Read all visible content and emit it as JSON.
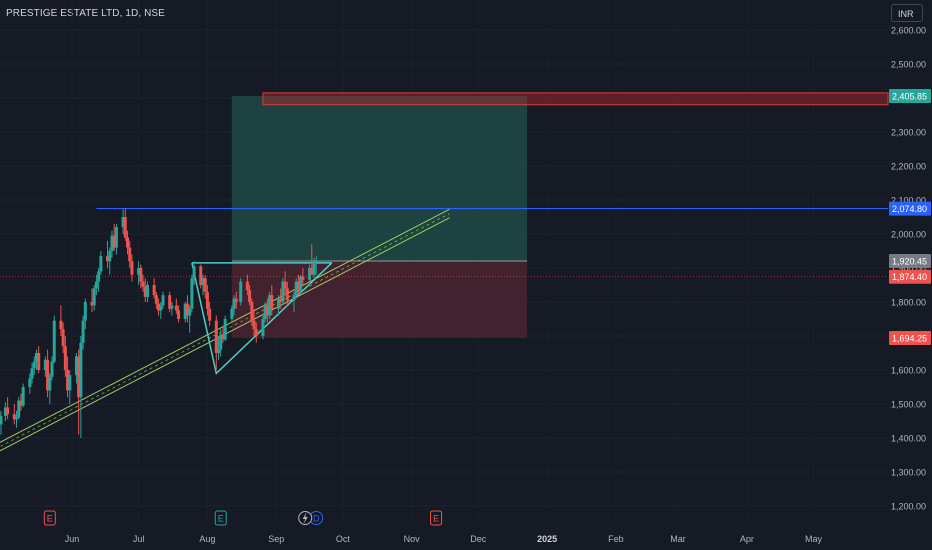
{
  "header": {
    "symbol_title": "PRESTIGE ESTATE LTD, 1D, NSE",
    "currency": "INR"
  },
  "colors": {
    "background": "#161a25",
    "up": "#26a69a",
    "down": "#ef5350",
    "profit_zone": "#1f4a44",
    "loss_zone": "#4a2530",
    "resistance_line": "#2962ff",
    "trendline": "#9ccc65",
    "pattern": "#4dd0c4"
  },
  "chart_data": {
    "type": "candlestick",
    "ylim": [
      1150,
      2650
    ],
    "y_ticks": [
      "1,200.00",
      "1,300.00",
      "1,400.00",
      "1,500.00",
      "1,600.00",
      "1,700.00",
      "1,800.00",
      "1,900.00",
      "2,000.00",
      "2,100.00",
      "2,200.00",
      "2,300.00",
      "2,400.00",
      "2,500.00",
      "2,600.00"
    ],
    "x_ticks": [
      "Jun",
      "Jul",
      "Aug",
      "Sep",
      "Oct",
      "Nov",
      "Dec",
      "2025",
      "Feb",
      "Mar",
      "Apr",
      "May"
    ],
    "price_labels": [
      {
        "text": "2,405.85",
        "value": 2405.85,
        "color": "#26a69a"
      },
      {
        "text": "2,074.80",
        "value": 2074.8,
        "color": "#2962ff"
      },
      {
        "text": "1,920.45",
        "value": 1920.45,
        "color": "#787b86"
      },
      {
        "text": "1,874.40",
        "value": 1874.4,
        "color": "#ef5350"
      },
      {
        "text": "1,694.25",
        "value": 1694.25,
        "color": "#ef5350"
      }
    ],
    "event_markers": [
      {
        "label": "E",
        "date": "2024-05-22"
      },
      {
        "label": "E",
        "date": "2024-08-07"
      },
      {
        "label": "E",
        "date": "2024-11-12"
      },
      {
        "label": "D",
        "date": "2024-09-19"
      }
    ],
    "position_tool": {
      "start": "2024-08-12",
      "end": "2024-12-23",
      "entry": 1920.45,
      "target": 2405.85,
      "stop": 1694.25
    },
    "target_zone": {
      "start": "2024-08-26",
      "end": "2025-05-31",
      "low": 2380,
      "high": 2415
    },
    "resistance": {
      "start": "2024-06-12",
      "end": "2025-05-31",
      "value": 2074.8
    },
    "triangle": [
      {
        "date": "2024-07-25",
        "value": 1915
      },
      {
        "date": "2024-08-05",
        "value": 1590
      },
      {
        "date": "2024-09-26",
        "value": 1915
      }
    ],
    "channel": {
      "start": {
        "date": "2024-02-01",
        "value": 1075
      },
      "end": {
        "date": "2024-11-18",
        "value": 2060
      },
      "offset": 25
    },
    "ohlc": [
      [
        "2024-04-29",
        1475,
        1500,
        1420,
        1440
      ],
      [
        "2024-04-30",
        1440,
        1480,
        1410,
        1465
      ],
      [
        "2024-05-02",
        1465,
        1505,
        1450,
        1490
      ],
      [
        "2024-05-03",
        1490,
        1520,
        1455,
        1470
      ],
      [
        "2024-05-06",
        1470,
        1500,
        1440,
        1455
      ],
      [
        "2024-05-07",
        1455,
        1480,
        1430,
        1460
      ],
      [
        "2024-05-08",
        1460,
        1520,
        1455,
        1510
      ],
      [
        "2024-05-09",
        1510,
        1530,
        1480,
        1495
      ],
      [
        "2024-05-10",
        1495,
        1560,
        1490,
        1550
      ],
      [
        "2024-05-13",
        1550,
        1590,
        1530,
        1575
      ],
      [
        "2024-05-14",
        1575,
        1620,
        1560,
        1605
      ],
      [
        "2024-05-15",
        1605,
        1640,
        1585,
        1625
      ],
      [
        "2024-05-16",
        1625,
        1660,
        1600,
        1650
      ],
      [
        "2024-05-17",
        1650,
        1670,
        1590,
        1600
      ],
      [
        "2024-05-20",
        1600,
        1640,
        1580,
        1630
      ],
      [
        "2024-05-21",
        1630,
        1660,
        1520,
        1540
      ],
      [
        "2024-05-22",
        1540,
        1590,
        1500,
        1580
      ],
      [
        "2024-05-23",
        1580,
        1640,
        1570,
        1625
      ],
      [
        "2024-05-24",
        1625,
        1760,
        1620,
        1745
      ],
      [
        "2024-05-27",
        1745,
        1790,
        1700,
        1720
      ],
      [
        "2024-05-28",
        1720,
        1740,
        1650,
        1670
      ],
      [
        "2024-05-29",
        1670,
        1700,
        1580,
        1600
      ],
      [
        "2024-05-30",
        1600,
        1640,
        1520,
        1540
      ],
      [
        "2024-05-31",
        1540,
        1600,
        1500,
        1585
      ],
      [
        "2024-06-03",
        1585,
        1650,
        1560,
        1640
      ],
      [
        "2024-06-04",
        1640,
        1660,
        1410,
        1520
      ],
      [
        "2024-06-05",
        1520,
        1700,
        1400,
        1680
      ],
      [
        "2024-06-06",
        1680,
        1760,
        1660,
        1745
      ],
      [
        "2024-06-07",
        1745,
        1810,
        1720,
        1800
      ],
      [
        "2024-06-10",
        1800,
        1840,
        1770,
        1790
      ],
      [
        "2024-06-11",
        1790,
        1850,
        1775,
        1840
      ],
      [
        "2024-06-12",
        1840,
        1880,
        1820,
        1860
      ],
      [
        "2024-06-13",
        1860,
        1900,
        1830,
        1890
      ],
      [
        "2024-06-14",
        1890,
        1950,
        1880,
        1935
      ],
      [
        "2024-06-17",
        1935,
        1980,
        1900,
        1920
      ],
      [
        "2024-06-18",
        1920,
        1960,
        1880,
        1950
      ],
      [
        "2024-06-19",
        1950,
        2010,
        1930,
        1995
      ],
      [
        "2024-06-20",
        1995,
        2030,
        1950,
        1960
      ],
      [
        "2024-06-21",
        1960,
        2030,
        1940,
        2020
      ],
      [
        "2024-06-24",
        2020,
        2072,
        2000,
        2050
      ],
      [
        "2024-06-25",
        2050,
        2074.8,
        1980,
        1990
      ],
      [
        "2024-06-26",
        1990,
        2010,
        1940,
        1960
      ],
      [
        "2024-06-27",
        1960,
        1980,
        1900,
        1920
      ],
      [
        "2024-06-28",
        1920,
        1940,
        1860,
        1880
      ],
      [
        "2024-07-01",
        1880,
        1920,
        1850,
        1900
      ],
      [
        "2024-07-02",
        1900,
        1910,
        1840,
        1860
      ],
      [
        "2024-07-03",
        1860,
        1880,
        1830,
        1845
      ],
      [
        "2024-07-04",
        1845,
        1870,
        1800,
        1815
      ],
      [
        "2024-07-05",
        1815,
        1860,
        1800,
        1850
      ],
      [
        "2024-07-08",
        1850,
        1870,
        1810,
        1820
      ],
      [
        "2024-07-09",
        1820,
        1830,
        1780,
        1795
      ],
      [
        "2024-07-10",
        1795,
        1810,
        1760,
        1775
      ],
      [
        "2024-07-11",
        1775,
        1800,
        1750,
        1790
      ],
      [
        "2024-07-12",
        1790,
        1830,
        1780,
        1820
      ],
      [
        "2024-07-15",
        1820,
        1830,
        1770,
        1780
      ],
      [
        "2024-07-16",
        1780,
        1800,
        1760,
        1790
      ],
      [
        "2024-07-18",
        1790,
        1810,
        1765,
        1775
      ],
      [
        "2024-07-19",
        1775,
        1790,
        1740,
        1750
      ],
      [
        "2024-07-22",
        1750,
        1800,
        1740,
        1795
      ],
      [
        "2024-07-23",
        1795,
        1820,
        1740,
        1760
      ],
      [
        "2024-07-24",
        1760,
        1790,
        1710,
        1780
      ],
      [
        "2024-07-25",
        1780,
        1880,
        1770,
        1870
      ],
      [
        "2024-07-26",
        1870,
        1920,
        1850,
        1905
      ],
      [
        "2024-07-29",
        1905,
        1910,
        1840,
        1850
      ],
      [
        "2024-07-30",
        1850,
        1880,
        1820,
        1870
      ],
      [
        "2024-07-31",
        1870,
        1880,
        1810,
        1830
      ],
      [
        "2024-08-01",
        1830,
        1850,
        1760,
        1780
      ],
      [
        "2024-08-02",
        1780,
        1800,
        1730,
        1745
      ],
      [
        "2024-08-05",
        1745,
        1760,
        1600,
        1650
      ],
      [
        "2024-08-06",
        1650,
        1700,
        1630,
        1660
      ],
      [
        "2024-08-07",
        1660,
        1720,
        1640,
        1705
      ],
      [
        "2024-08-08",
        1705,
        1730,
        1680,
        1690
      ],
      [
        "2024-08-09",
        1690,
        1760,
        1685,
        1750
      ],
      [
        "2024-08-12",
        1750,
        1790,
        1740,
        1780
      ],
      [
        "2024-08-13",
        1780,
        1820,
        1760,
        1810
      ],
      [
        "2024-08-14",
        1810,
        1830,
        1780,
        1800
      ],
      [
        "2024-08-16",
        1800,
        1870,
        1790,
        1860
      ],
      [
        "2024-08-19",
        1860,
        1880,
        1820,
        1835
      ],
      [
        "2024-08-20",
        1835,
        1850,
        1790,
        1800
      ],
      [
        "2024-08-21",
        1800,
        1810,
        1730,
        1745
      ],
      [
        "2024-08-22",
        1745,
        1780,
        1700,
        1720
      ],
      [
        "2024-08-23",
        1720,
        1740,
        1680,
        1700
      ],
      [
        "2024-08-26",
        1700,
        1760,
        1690,
        1750
      ],
      [
        "2024-08-27",
        1750,
        1800,
        1740,
        1790
      ],
      [
        "2024-08-28",
        1790,
        1810,
        1740,
        1760
      ],
      [
        "2024-08-29",
        1760,
        1830,
        1750,
        1820
      ],
      [
        "2024-08-30",
        1820,
        1850,
        1760,
        1780
      ],
      [
        "2024-09-02",
        1780,
        1820,
        1760,
        1810
      ],
      [
        "2024-09-03",
        1810,
        1840,
        1780,
        1800
      ],
      [
        "2024-09-04",
        1800,
        1870,
        1790,
        1860
      ],
      [
        "2024-09-05",
        1860,
        1890,
        1820,
        1840
      ],
      [
        "2024-09-06",
        1840,
        1860,
        1790,
        1805
      ],
      [
        "2024-09-09",
        1805,
        1830,
        1770,
        1820
      ],
      [
        "2024-09-10",
        1820,
        1870,
        1810,
        1860
      ],
      [
        "2024-09-11",
        1860,
        1880,
        1820,
        1830
      ],
      [
        "2024-09-12",
        1830,
        1880,
        1820,
        1875
      ],
      [
        "2024-09-13",
        1875,
        1900,
        1850,
        1865
      ],
      [
        "2024-09-16",
        1865,
        1910,
        1850,
        1900
      ],
      [
        "2024-09-17",
        1900,
        1970,
        1880,
        1880
      ],
      [
        "2024-09-18",
        1880,
        1930,
        1870,
        1920
      ],
      [
        "2024-09-19",
        1920,
        1935,
        1880,
        1920.45
      ]
    ]
  }
}
